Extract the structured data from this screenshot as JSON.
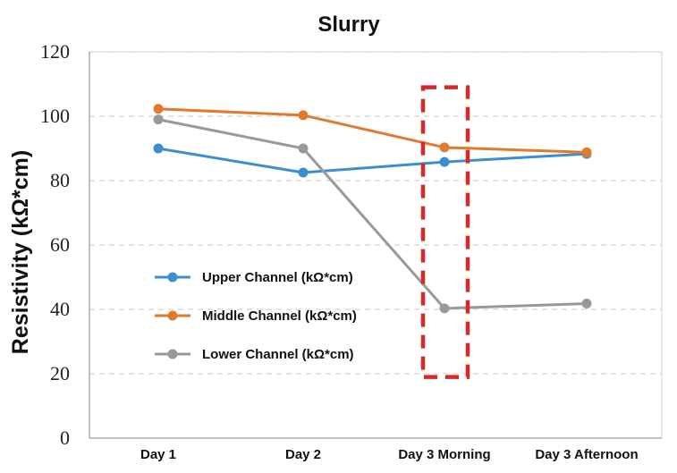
{
  "chart_data": {
    "type": "line",
    "title": "Slurry",
    "xlabel": "",
    "ylabel": "Resistivity (kΩ*cm)",
    "categories": [
      "Day 1",
      "Day 2",
      "Day 3 Morning",
      "Day 3 Afternoon"
    ],
    "ylim": [
      0,
      120
    ],
    "yticks": [
      0,
      20,
      40,
      60,
      80,
      100,
      120
    ],
    "grid": "horizontal-dashed",
    "legend_position": "center-left",
    "series": [
      {
        "name": "Upper Channel (kΩ*cm)",
        "values": [
          90,
          82.5,
          85.8,
          88.3
        ],
        "color": "#3a8fd0"
      },
      {
        "name": "Middle Channel (kΩ*cm)",
        "values": [
          102.3,
          100.3,
          90.3,
          88.8
        ],
        "color": "#e27a2e"
      },
      {
        "name": "Lower Channel (kΩ*cm)",
        "values": [
          99,
          90,
          40.3,
          41.8
        ],
        "color": "#999999"
      }
    ],
    "annotations": [
      {
        "type": "dashed-rectangle",
        "around_category": "Day 3 Morning",
        "y_range": [
          19,
          109
        ],
        "color": "#d42a2a"
      }
    ]
  }
}
